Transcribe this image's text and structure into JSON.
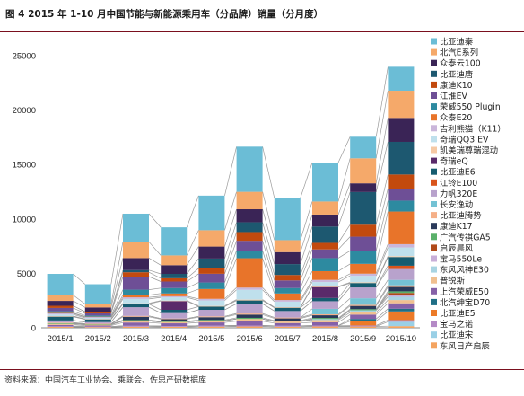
{
  "header": {
    "title": "图 4  2015 年 1-10 月中国节能与新能源乘用车（分品牌）销量（分月度）"
  },
  "footer": {
    "source": "资料来源：中国汽车工业协会、乘联会、佐思产研数据库"
  },
  "chart_data": {
    "type": "bar",
    "stacked": true,
    "categories": [
      "2015/1",
      "2015/2",
      "2015/3",
      "2015/4",
      "2015/5",
      "2015/6",
      "2015/7",
      "2015/8",
      "2015/9",
      "2015/10"
    ],
    "ylim": [
      0,
      25000
    ],
    "yticks": [
      0,
      5000,
      10000,
      15000,
      20000,
      25000
    ],
    "grid": false,
    "legend_position": "right",
    "series_connector_lines": true,
    "series": [
      {
        "name": "东风日产启辰",
        "color": "#f4a460",
        "values": [
          80,
          60,
          100,
          90,
          110,
          120,
          100,
          120,
          120,
          150
        ]
      },
      {
        "name": "比亚迪宋",
        "color": "#9ad0e6",
        "values": [
          0,
          0,
          0,
          0,
          0,
          0,
          0,
          0,
          0,
          400
        ]
      },
      {
        "name": "宝马之诺",
        "color": "#b48ac6",
        "values": [
          60,
          50,
          80,
          70,
          80,
          90,
          80,
          80,
          90,
          150
        ]
      },
      {
        "name": "比亚迪E5",
        "color": "#ec7a28",
        "values": [
          0,
          0,
          0,
          0,
          0,
          0,
          0,
          0,
          400,
          800
        ]
      },
      {
        "name": "北汽绅宝D70",
        "color": "#1f6f86",
        "values": [
          0,
          0,
          0,
          0,
          0,
          0,
          0,
          0,
          200,
          250
        ]
      },
      {
        "name": "上汽荣威E50",
        "color": "#8561a8",
        "values": [
          120,
          100,
          300,
          250,
          300,
          400,
          250,
          300,
          400,
          500
        ]
      },
      {
        "name": "普锐斯",
        "color": "#f0c090",
        "values": [
          100,
          80,
          150,
          120,
          150,
          200,
          150,
          200,
          200,
          300
        ]
      },
      {
        "name": "东风风神E30",
        "color": "#a8d4e2",
        "values": [
          0,
          0,
          0,
          0,
          0,
          0,
          0,
          100,
          200,
          300
        ]
      },
      {
        "name": "宝马550Le",
        "color": "#c8aed8",
        "values": [
          0,
          0,
          0,
          0,
          0,
          0,
          0,
          0,
          0,
          200
        ]
      },
      {
        "name": "启辰晨风",
        "color": "#b04a1a",
        "values": [
          0,
          0,
          0,
          0,
          0,
          0,
          0,
          0,
          0,
          150
        ]
      },
      {
        "name": "广汽传祺GA5",
        "color": "#5ab06a",
        "values": [
          60,
          40,
          80,
          60,
          80,
          100,
          80,
          100,
          100,
          150
        ]
      },
      {
        "name": "康迪K17",
        "color": "#2a3a5a",
        "values": [
          0,
          0,
          300,
          200,
          250,
          300,
          200,
          250,
          300,
          400
        ]
      },
      {
        "name": "比亚迪腾势",
        "color": "#f5b088",
        "values": [
          50,
          40,
          80,
          60,
          80,
          100,
          80,
          90,
          100,
          150
        ]
      },
      {
        "name": "长安逸动",
        "color": "#74c2d4",
        "values": [
          0,
          0,
          0,
          0,
          0,
          0,
          0,
          500,
          600,
          500
        ]
      },
      {
        "name": "力帆320E",
        "color": "#b8a2cc",
        "values": [
          200,
          150,
          800,
          500,
          600,
          900,
          600,
          700,
          1000,
          1000
        ]
      },
      {
        "name": "江铃E100",
        "color": "#d9541b",
        "values": [
          0,
          0,
          0,
          0,
          0,
          0,
          0,
          0,
          0,
          300
        ]
      },
      {
        "name": "比亚迪E6",
        "color": "#165c70",
        "values": [
          350,
          250,
          300,
          300,
          300,
          300,
          300,
          300,
          400,
          800
        ]
      },
      {
        "name": "奇瑞eQ",
        "color": "#5a2a6a",
        "values": [
          0,
          0,
          0,
          800,
          0,
          0,
          0,
          1000,
          0,
          0
        ]
      },
      {
        "name": "凯美瑞尊瑞混动",
        "color": "#f6c9a4",
        "values": [
          50,
          40,
          60,
          50,
          60,
          80,
          60,
          60,
          60,
          80
        ]
      },
      {
        "name": "奇瑞QQ3 EV",
        "color": "#bfe0ec",
        "values": [
          150,
          100,
          400,
          300,
          500,
          900,
          500,
          400,
          600,
          800
        ]
      },
      {
        "name": "吉利熊猫（K11）",
        "color": "#cab6da",
        "values": [
          100,
          80,
          150,
          100,
          150,
          200,
          150,
          200,
          200,
          300
        ]
      },
      {
        "name": "众泰E20",
        "color": "#e8742a",
        "values": [
          50,
          30,
          200,
          250,
          900,
          2700,
          600,
          800,
          900,
          3000
        ]
      },
      {
        "name": "荣威550 Plugin",
        "color": "#2d8aa0",
        "values": [
          150,
          100,
          500,
          500,
          600,
          700,
          500,
          1200,
          1200,
          1000
        ]
      },
      {
        "name": "江淮EV",
        "color": "#6e4f96",
        "values": [
          300,
          200,
          1200,
          600,
          800,
          900,
          700,
          800,
          1300,
          1100
        ]
      },
      {
        "name": "康迪K10",
        "color": "#c24a0e",
        "values": [
          200,
          150,
          400,
          300,
          500,
          800,
          500,
          600,
          1100,
          1300
        ]
      },
      {
        "name": "比亚迪唐",
        "color": "#1d5870",
        "values": [
          0,
          0,
          200,
          400,
          900,
          900,
          1000,
          1500,
          3000,
          3000
        ]
      },
      {
        "name": "众泰云100",
        "color": "#3a2456",
        "values": [
          450,
          400,
          1100,
          800,
          1100,
          1200,
          1100,
          1100,
          800,
          2200
        ]
      },
      {
        "name": "北汽E系列",
        "color": "#f5a96a",
        "values": [
          530,
          320,
          1500,
          900,
          1500,
          1600,
          1100,
          1200,
          2300,
          2500
        ]
      },
      {
        "name": "比亚迪秦",
        "color": "#6bbdd6",
        "values": [
          1950,
          1810,
          2580,
          2580,
          3180,
          4150,
          3880,
          3580,
          1980,
          2200
        ]
      }
    ]
  }
}
